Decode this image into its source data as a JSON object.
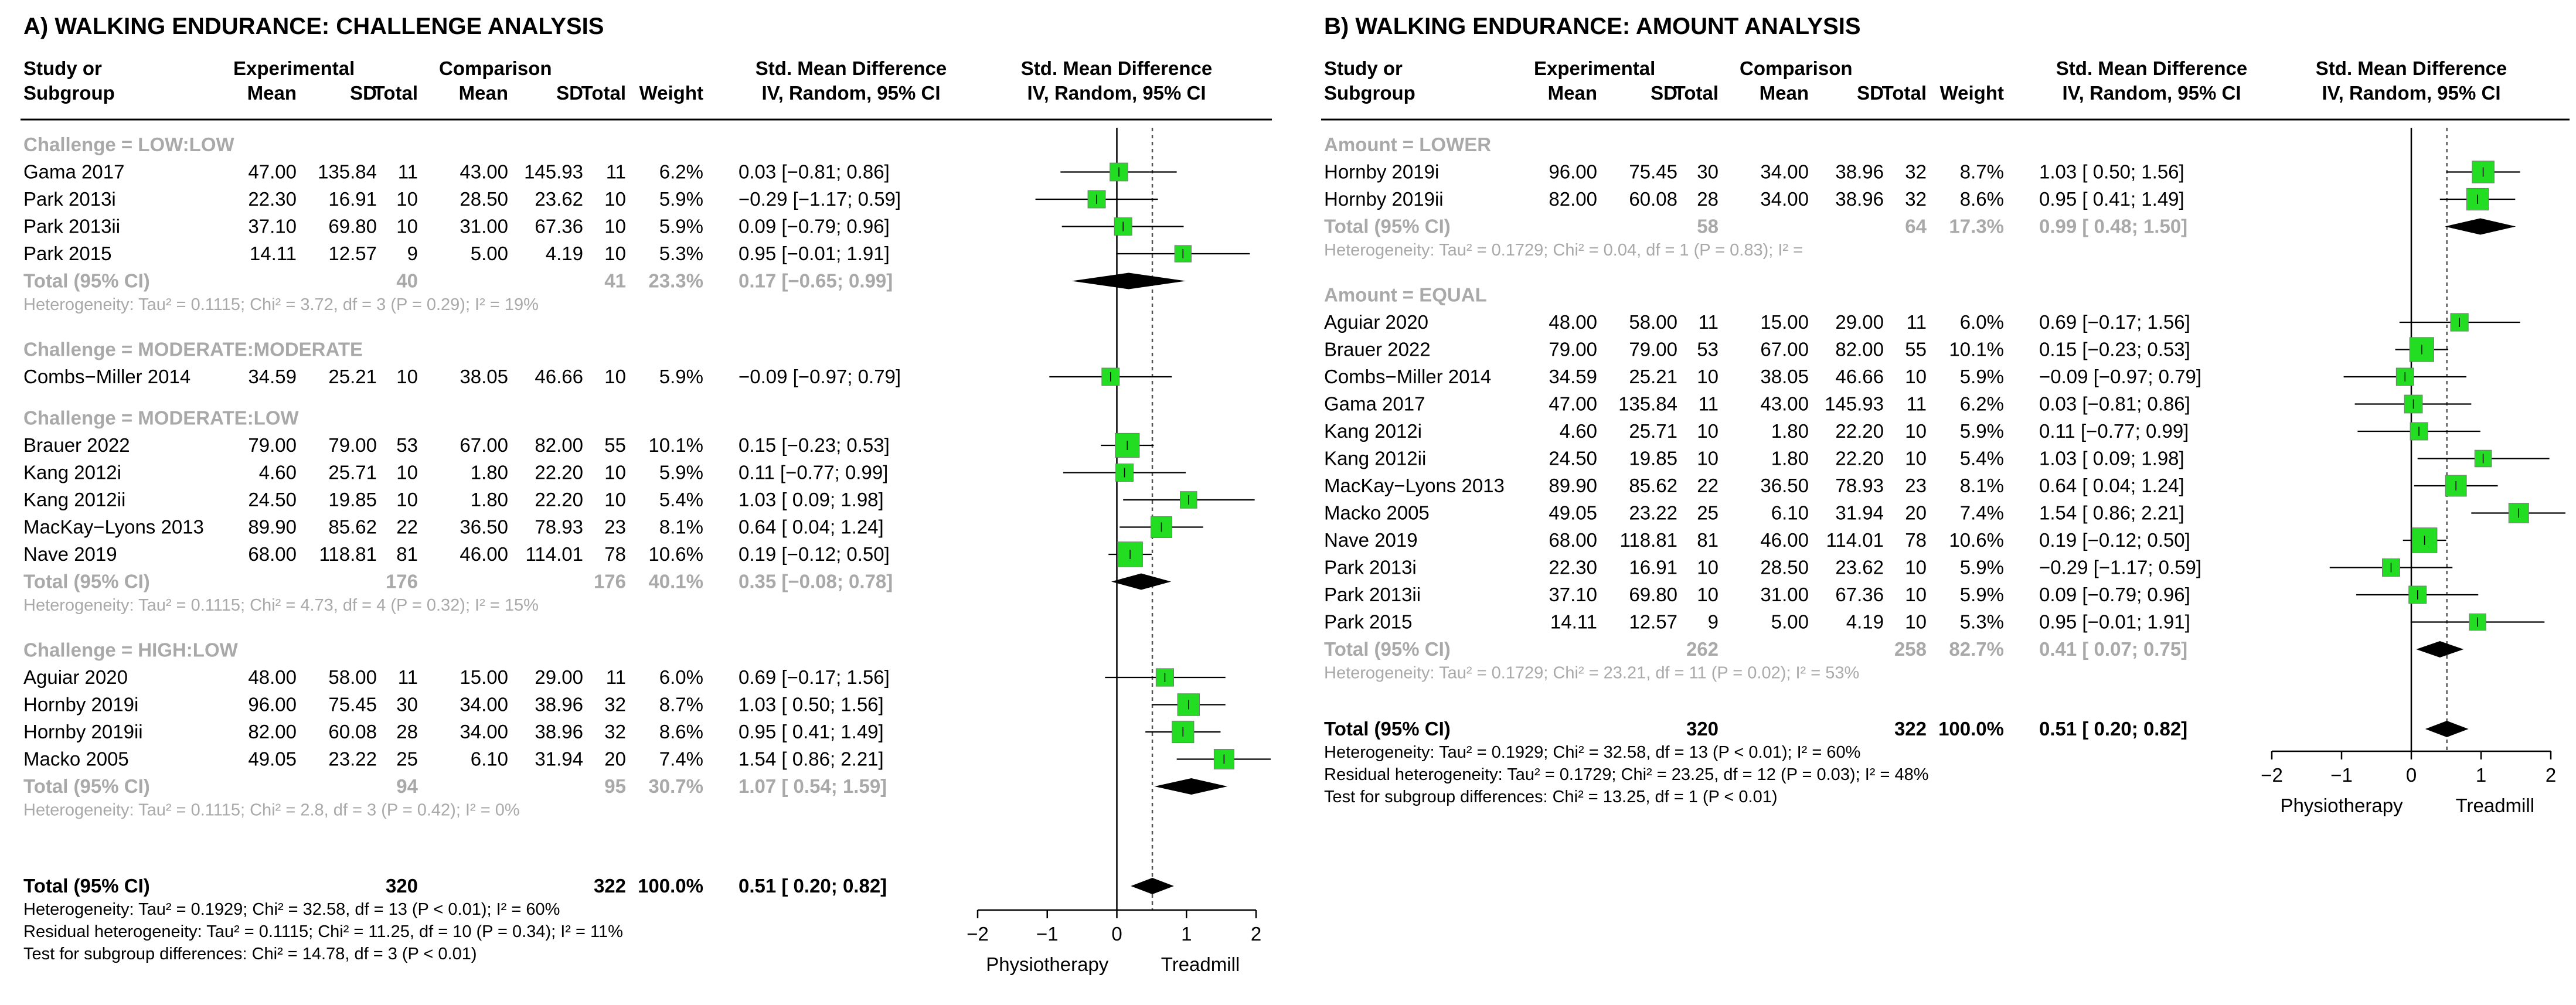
{
  "chart_data": [
    {
      "type": "forest",
      "title": "A) WALKING ENDURANCE: CHALLENGE ANALYSIS",
      "header": {
        "study_l1": "Study or",
        "study_l2": "Subgroup",
        "experimental": "Experimental",
        "comparison": "Comparison",
        "mean": "Mean",
        "sd": "SD",
        "total": "Total",
        "weight": "Weight",
        "smd_l1": "Std. Mean Difference",
        "smd_l2": "IV, Random, 95% CI",
        "plot_l1": "Std. Mean Difference",
        "plot_l2": "IV, Random, 95% CI"
      },
      "groups": [
        {
          "label": "Challenge = LOW:LOW",
          "studies": [
            {
              "name": "Gama 2017",
              "e_mean": "47.00",
              "e_sd": "135.84",
              "e_n": "11",
              "c_mean": "43.00",
              "c_sd": "145.93",
              "c_n": "11",
              "weight": "6.2%",
              "ci_text": "0.03 [−0.81; 0.86]",
              "est": 0.03,
              "lo": -0.81,
              "hi": 0.86,
              "w": 6.2
            },
            {
              "name": "Park 2013i",
              "e_mean": "22.30",
              "e_sd": "16.91",
              "e_n": "10",
              "c_mean": "28.50",
              "c_sd": "23.62",
              "c_n": "10",
              "weight": "5.9%",
              "ci_text": "−0.29 [−1.17; 0.59]",
              "est": -0.29,
              "lo": -1.17,
              "hi": 0.59,
              "w": 5.9
            },
            {
              "name": "Park 2013ii",
              "e_mean": "37.10",
              "e_sd": "69.80",
              "e_n": "10",
              "c_mean": "31.00",
              "c_sd": "67.36",
              "c_n": "10",
              "weight": "5.9%",
              "ci_text": "0.09 [−0.79; 0.96]",
              "est": 0.09,
              "lo": -0.79,
              "hi": 0.96,
              "w": 5.9
            },
            {
              "name": "Park 2015",
              "e_mean": "14.11",
              "e_sd": "12.57",
              "e_n": "9",
              "c_mean": "5.00",
              "c_sd": "4.19",
              "c_n": "10",
              "weight": "5.3%",
              "ci_text": "0.95 [−0.01; 1.91]",
              "est": 0.95,
              "lo": -0.01,
              "hi": 1.91,
              "w": 5.3
            }
          ],
          "total": {
            "label": "Total (95% CI)",
            "e_n": "40",
            "c_n": "41",
            "weight": "23.3%",
            "ci_text": "0.17 [−0.65; 0.99]",
            "est": 0.17,
            "lo": -0.65,
            "hi": 0.99
          },
          "het": "Heterogeneity: Tau² = 0.1115; Chi² = 3.72, df = 3 (P = 0.29); I² = 19%"
        },
        {
          "label": "Challenge = MODERATE:MODERATE",
          "studies": [
            {
              "name": "Combs−Miller 2014",
              "e_mean": "34.59",
              "e_sd": "25.21",
              "e_n": "10",
              "c_mean": "38.05",
              "c_sd": "46.66",
              "c_n": "10",
              "weight": "5.9%",
              "ci_text": "−0.09 [−0.97; 0.79]",
              "est": -0.09,
              "lo": -0.97,
              "hi": 0.79,
              "w": 5.9
            }
          ]
        },
        {
          "label": "Challenge = MODERATE:LOW",
          "studies": [
            {
              "name": "Brauer 2022",
              "e_mean": "79.00",
              "e_sd": "79.00",
              "e_n": "53",
              "c_mean": "67.00",
              "c_sd": "82.00",
              "c_n": "55",
              "weight": "10.1%",
              "ci_text": "0.15 [−0.23; 0.53]",
              "est": 0.15,
              "lo": -0.23,
              "hi": 0.53,
              "w": 10.1
            },
            {
              "name": "Kang 2012i",
              "e_mean": "4.60",
              "e_sd": "25.71",
              "e_n": "10",
              "c_mean": "1.80",
              "c_sd": "22.20",
              "c_n": "10",
              "weight": "5.9%",
              "ci_text": "0.11 [−0.77; 0.99]",
              "est": 0.11,
              "lo": -0.77,
              "hi": 0.99,
              "w": 5.9
            },
            {
              "name": "Kang 2012ii",
              "e_mean": "24.50",
              "e_sd": "19.85",
              "e_n": "10",
              "c_mean": "1.80",
              "c_sd": "22.20",
              "c_n": "10",
              "weight": "5.4%",
              "ci_text": "1.03 [ 0.09; 1.98]",
              "est": 1.03,
              "lo": 0.09,
              "hi": 1.98,
              "w": 5.4
            },
            {
              "name": "MacKay−Lyons 2013",
              "e_mean": "89.90",
              "e_sd": "85.62",
              "e_n": "22",
              "c_mean": "36.50",
              "c_sd": "78.93",
              "c_n": "23",
              "weight": "8.1%",
              "ci_text": "0.64 [ 0.04; 1.24]",
              "est": 0.64,
              "lo": 0.04,
              "hi": 1.24,
              "w": 8.1
            },
            {
              "name": "Nave 2019",
              "e_mean": "68.00",
              "e_sd": "118.81",
              "e_n": "81",
              "c_mean": "46.00",
              "c_sd": "114.01",
              "c_n": "78",
              "weight": "10.6%",
              "ci_text": "0.19 [−0.12; 0.50]",
              "est": 0.19,
              "lo": -0.12,
              "hi": 0.5,
              "w": 10.6
            }
          ],
          "total": {
            "label": "Total (95% CI)",
            "e_n": "176",
            "c_n": "176",
            "weight": "40.1%",
            "ci_text": "0.35 [−0.08; 0.78]",
            "est": 0.35,
            "lo": -0.08,
            "hi": 0.78
          },
          "het": "Heterogeneity: Tau² = 0.1115; Chi² = 4.73, df = 4 (P = 0.32); I² = 15%"
        },
        {
          "label": "Challenge = HIGH:LOW",
          "studies": [
            {
              "name": "Aguiar 2020",
              "e_mean": "48.00",
              "e_sd": "58.00",
              "e_n": "11",
              "c_mean": "15.00",
              "c_sd": "29.00",
              "c_n": "11",
              "weight": "6.0%",
              "ci_text": "0.69 [−0.17; 1.56]",
              "est": 0.69,
              "lo": -0.17,
              "hi": 1.56,
              "w": 6.0
            },
            {
              "name": "Hornby 2019i",
              "e_mean": "96.00",
              "e_sd": "75.45",
              "e_n": "30",
              "c_mean": "34.00",
              "c_sd": "38.96",
              "c_n": "32",
              "weight": "8.7%",
              "ci_text": "1.03 [ 0.50; 1.56]",
              "est": 1.03,
              "lo": 0.5,
              "hi": 1.56,
              "w": 8.7
            },
            {
              "name": "Hornby 2019ii",
              "e_mean": "82.00",
              "e_sd": "60.08",
              "e_n": "28",
              "c_mean": "34.00",
              "c_sd": "38.96",
              "c_n": "32",
              "weight": "8.6%",
              "ci_text": "0.95 [ 0.41; 1.49]",
              "est": 0.95,
              "lo": 0.41,
              "hi": 1.49,
              "w": 8.6
            },
            {
              "name": "Macko 2005",
              "e_mean": "49.05",
              "e_sd": "23.22",
              "e_n": "25",
              "c_mean": "6.10",
              "c_sd": "31.94",
              "c_n": "20",
              "weight": "7.4%",
              "ci_text": "1.54 [ 0.86; 2.21]",
              "est": 1.54,
              "lo": 0.86,
              "hi": 2.21,
              "w": 7.4
            }
          ],
          "total": {
            "label": "Total (95% CI)",
            "e_n": "94",
            "c_n": "95",
            "weight": "30.7%",
            "ci_text": "1.07 [ 0.54; 1.59]",
            "est": 1.07,
            "lo": 0.54,
            "hi": 1.59
          },
          "het": "Heterogeneity: Tau² = 0.1115; Chi² = 2.8, df = 3 (P = 0.42); I² = 0%"
        }
      ],
      "overall": {
        "label": "Total (95% CI)",
        "e_n": "320",
        "c_n": "322",
        "weight": "100.0%",
        "ci_text": "0.51 [ 0.20; 0.82]",
        "est": 0.51,
        "lo": 0.2,
        "hi": 0.82
      },
      "footer": [
        "Heterogeneity: Tau² = 0.1929; Chi² = 32.58, df = 13 (P < 0.01); I² = 60%",
        "Residual heterogeneity: Tau² = 0.1115; Chi² = 11.25, df = 10 (P = 0.34); I² = 11%",
        "Test for subgroup differences: Chi² = 14.78, df = 3 (P < 0.01)"
      ],
      "xlim": [
        -2,
        2
      ],
      "ticks": [
        "−2",
        "−1",
        "0",
        "1",
        "2"
      ],
      "label_left": "Physiotherapy",
      "label_right": "Treadmill"
    },
    {
      "type": "forest",
      "title": "B) WALKING ENDURANCE: AMOUNT ANALYSIS",
      "header": {
        "study_l1": "Study or",
        "study_l2": "Subgroup",
        "experimental": "Experimental",
        "comparison": "Comparison",
        "mean": "Mean",
        "sd": "SD",
        "total": "Total",
        "weight": "Weight",
        "smd_l1": "Std. Mean Difference",
        "smd_l2": "IV, Random, 95% CI",
        "plot_l1": "Std. Mean Difference",
        "plot_l2": "IV, Random, 95% CI"
      },
      "groups": [
        {
          "label": "Amount = LOWER",
          "studies": [
            {
              "name": "Hornby 2019i",
              "e_mean": "96.00",
              "e_sd": "75.45",
              "e_n": "30",
              "c_mean": "34.00",
              "c_sd": "38.96",
              "c_n": "32",
              "weight": "8.7%",
              "ci_text": "1.03 [ 0.50; 1.56]",
              "est": 1.03,
              "lo": 0.5,
              "hi": 1.56,
              "w": 8.7
            },
            {
              "name": "Hornby 2019ii",
              "e_mean": "82.00",
              "e_sd": "60.08",
              "e_n": "28",
              "c_mean": "34.00",
              "c_sd": "38.96",
              "c_n": "32",
              "weight": "8.6%",
              "ci_text": "0.95 [ 0.41; 1.49]",
              "est": 0.95,
              "lo": 0.41,
              "hi": 1.49,
              "w": 8.6
            }
          ],
          "total": {
            "label": "Total (95% CI)",
            "e_n": "58",
            "c_n": "64",
            "weight": "17.3%",
            "ci_text": "0.99 [ 0.48; 1.50]",
            "est": 0.99,
            "lo": 0.48,
            "hi": 1.5
          },
          "het": "Heterogeneity: Tau² = 0.1729; Chi² = 0.04, df = 1 (P = 0.83); I² ="
        },
        {
          "label": "Amount = EQUAL",
          "studies": [
            {
              "name": "Aguiar 2020",
              "e_mean": "48.00",
              "e_sd": "58.00",
              "e_n": "11",
              "c_mean": "15.00",
              "c_sd": "29.00",
              "c_n": "11",
              "weight": "6.0%",
              "ci_text": "0.69 [−0.17; 1.56]",
              "est": 0.69,
              "lo": -0.17,
              "hi": 1.56,
              "w": 6.0
            },
            {
              "name": "Brauer 2022",
              "e_mean": "79.00",
              "e_sd": "79.00",
              "e_n": "53",
              "c_mean": "67.00",
              "c_sd": "82.00",
              "c_n": "55",
              "weight": "10.1%",
              "ci_text": "0.15 [−0.23; 0.53]",
              "est": 0.15,
              "lo": -0.23,
              "hi": 0.53,
              "w": 10.1
            },
            {
              "name": "Combs−Miller 2014",
              "e_mean": "34.59",
              "e_sd": "25.21",
              "e_n": "10",
              "c_mean": "38.05",
              "c_sd": "46.66",
              "c_n": "10",
              "weight": "5.9%",
              "ci_text": "−0.09 [−0.97; 0.79]",
              "est": -0.09,
              "lo": -0.97,
              "hi": 0.79,
              "w": 5.9
            },
            {
              "name": "Gama 2017",
              "e_mean": "47.00",
              "e_sd": "135.84",
              "e_n": "11",
              "c_mean": "43.00",
              "c_sd": "145.93",
              "c_n": "11",
              "weight": "6.2%",
              "ci_text": "0.03 [−0.81; 0.86]",
              "est": 0.03,
              "lo": -0.81,
              "hi": 0.86,
              "w": 6.2
            },
            {
              "name": "Kang 2012i",
              "e_mean": "4.60",
              "e_sd": "25.71",
              "e_n": "10",
              "c_mean": "1.80",
              "c_sd": "22.20",
              "c_n": "10",
              "weight": "5.9%",
              "ci_text": "0.11 [−0.77; 0.99]",
              "est": 0.11,
              "lo": -0.77,
              "hi": 0.99,
              "w": 5.9
            },
            {
              "name": "Kang 2012ii",
              "e_mean": "24.50",
              "e_sd": "19.85",
              "e_n": "10",
              "c_mean": "1.80",
              "c_sd": "22.20",
              "c_n": "10",
              "weight": "5.4%",
              "ci_text": "1.03 [ 0.09; 1.98]",
              "est": 1.03,
              "lo": 0.09,
              "hi": 1.98,
              "w": 5.4
            },
            {
              "name": "MacKay−Lyons 2013",
              "e_mean": "89.90",
              "e_sd": "85.62",
              "e_n": "22",
              "c_mean": "36.50",
              "c_sd": "78.93",
              "c_n": "23",
              "weight": "8.1%",
              "ci_text": "0.64 [ 0.04; 1.24]",
              "est": 0.64,
              "lo": 0.04,
              "hi": 1.24,
              "w": 8.1
            },
            {
              "name": "Macko 2005",
              "e_mean": "49.05",
              "e_sd": "23.22",
              "e_n": "25",
              "c_mean": "6.10",
              "c_sd": "31.94",
              "c_n": "20",
              "weight": "7.4%",
              "ci_text": "1.54 [ 0.86; 2.21]",
              "est": 1.54,
              "lo": 0.86,
              "hi": 2.21,
              "w": 7.4
            },
            {
              "name": "Nave 2019",
              "e_mean": "68.00",
              "e_sd": "118.81",
              "e_n": "81",
              "c_mean": "46.00",
              "c_sd": "114.01",
              "c_n": "78",
              "weight": "10.6%",
              "ci_text": "0.19 [−0.12; 0.50]",
              "est": 0.19,
              "lo": -0.12,
              "hi": 0.5,
              "w": 10.6
            },
            {
              "name": "Park 2013i",
              "e_mean": "22.30",
              "e_sd": "16.91",
              "e_n": "10",
              "c_mean": "28.50",
              "c_sd": "23.62",
              "c_n": "10",
              "weight": "5.9%",
              "ci_text": "−0.29 [−1.17; 0.59]",
              "est": -0.29,
              "lo": -1.17,
              "hi": 0.59,
              "w": 5.9
            },
            {
              "name": "Park 2013ii",
              "e_mean": "37.10",
              "e_sd": "69.80",
              "e_n": "10",
              "c_mean": "31.00",
              "c_sd": "67.36",
              "c_n": "10",
              "weight": "5.9%",
              "ci_text": "0.09 [−0.79; 0.96]",
              "est": 0.09,
              "lo": -0.79,
              "hi": 0.96,
              "w": 5.9
            },
            {
              "name": "Park 2015",
              "e_mean": "14.11",
              "e_sd": "12.57",
              "e_n": "9",
              "c_mean": "5.00",
              "c_sd": "4.19",
              "c_n": "10",
              "weight": "5.3%",
              "ci_text": "0.95 [−0.01; 1.91]",
              "est": 0.95,
              "lo": -0.01,
              "hi": 1.91,
              "w": 5.3
            }
          ],
          "total": {
            "label": "Total (95% CI)",
            "e_n": "262",
            "c_n": "258",
            "weight": "82.7%",
            "ci_text": "0.41 [ 0.07; 0.75]",
            "est": 0.41,
            "lo": 0.07,
            "hi": 0.75
          },
          "het": "Heterogeneity: Tau² = 0.1729; Chi² = 23.21, df = 11 (P = 0.02); I² = 53%"
        }
      ],
      "overall": {
        "label": "Total (95% CI)",
        "e_n": "320",
        "c_n": "322",
        "weight": "100.0%",
        "ci_text": "0.51 [ 0.20; 0.82]",
        "est": 0.51,
        "lo": 0.2,
        "hi": 0.82
      },
      "footer": [
        "Heterogeneity: Tau² = 0.1929; Chi² = 32.58, df = 13 (P < 0.01); I² = 60%",
        "Residual heterogeneity: Tau² = 0.1729; Chi² = 23.25, df = 12 (P = 0.03); I² = 48%",
        "Test for subgroup differences: Chi² = 13.25, df = 1 (P < 0.01)"
      ],
      "xlim": [
        -2,
        2
      ],
      "ticks": [
        "−2",
        "−1",
        "0",
        "1",
        "2"
      ],
      "label_left": "Physiotherapy",
      "label_right": "Treadmill"
    }
  ],
  "colors": {
    "square": "#22dd22",
    "square_border": "#777777",
    "grey_text": "#a9a9a9",
    "reference": "#000000"
  }
}
